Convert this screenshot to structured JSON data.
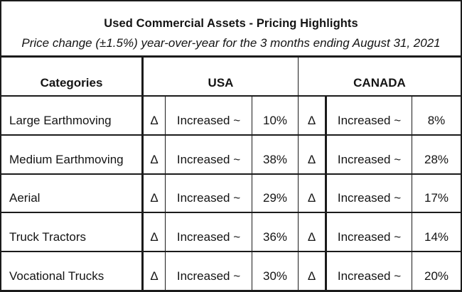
{
  "title_block": {
    "title": "Used Commercial Assets - Pricing Highlights",
    "subtitle": "Price change (±1.5%) year-over-year for the 3 months ending August 31, 2021"
  },
  "table": {
    "header": {
      "categories": "Categories",
      "usa": "USA",
      "canada": "CANADA"
    },
    "rows": [
      {
        "category": "Large Earthmoving",
        "usa_delta": "Δ",
        "usa_change": "Increased ~",
        "usa_pct": "10%",
        "can_delta": "Δ",
        "can_change": "Increased ~",
        "can_pct": "8%"
      },
      {
        "category": "Medium Earthmoving",
        "usa_delta": "Δ",
        "usa_change": "Increased ~",
        "usa_pct": "38%",
        "can_delta": "Δ",
        "can_change": "Increased ~",
        "can_pct": "28%"
      },
      {
        "category": "Aerial",
        "usa_delta": "Δ",
        "usa_change": "Increased ~",
        "usa_pct": "29%",
        "can_delta": "Δ",
        "can_change": "Increased ~",
        "can_pct": "17%"
      },
      {
        "category": "Truck Tractors",
        "usa_delta": "Δ",
        "usa_change": "Increased ~",
        "usa_pct": "36%",
        "can_delta": "Δ",
        "can_change": "Increased ~",
        "can_pct": "14%"
      },
      {
        "category": "Vocational Trucks",
        "usa_delta": "Δ",
        "usa_change": "Increased ~",
        "usa_pct": "30%",
        "can_delta": "Δ",
        "can_change": "Increased ~",
        "can_pct": "20%"
      }
    ]
  },
  "colors": {
    "line": "#1b1b1b",
    "text": "#141414",
    "background": "#ffffff"
  },
  "chart_data": {
    "type": "table",
    "title": "Used Commercial Assets - Pricing Highlights",
    "subtitle": "Price change (±1.5%) year-over-year for the 3 months ending August 31, 2021",
    "categories": [
      "Large Earthmoving",
      "Medium Earthmoving",
      "Aerial",
      "Truck Tractors",
      "Vocational Trucks"
    ],
    "series": [
      {
        "name": "USA",
        "direction": [
          "Increased ~",
          "Increased ~",
          "Increased ~",
          "Increased ~",
          "Increased ~"
        ],
        "values": [
          10,
          38,
          29,
          36,
          30
        ]
      },
      {
        "name": "CANADA",
        "direction": [
          "Increased ~",
          "Increased ~",
          "Increased ~",
          "Increased ~",
          "Increased ~"
        ],
        "values": [
          8,
          28,
          17,
          14,
          20
        ]
      }
    ],
    "units": "%",
    "delta_symbol": "Δ"
  }
}
